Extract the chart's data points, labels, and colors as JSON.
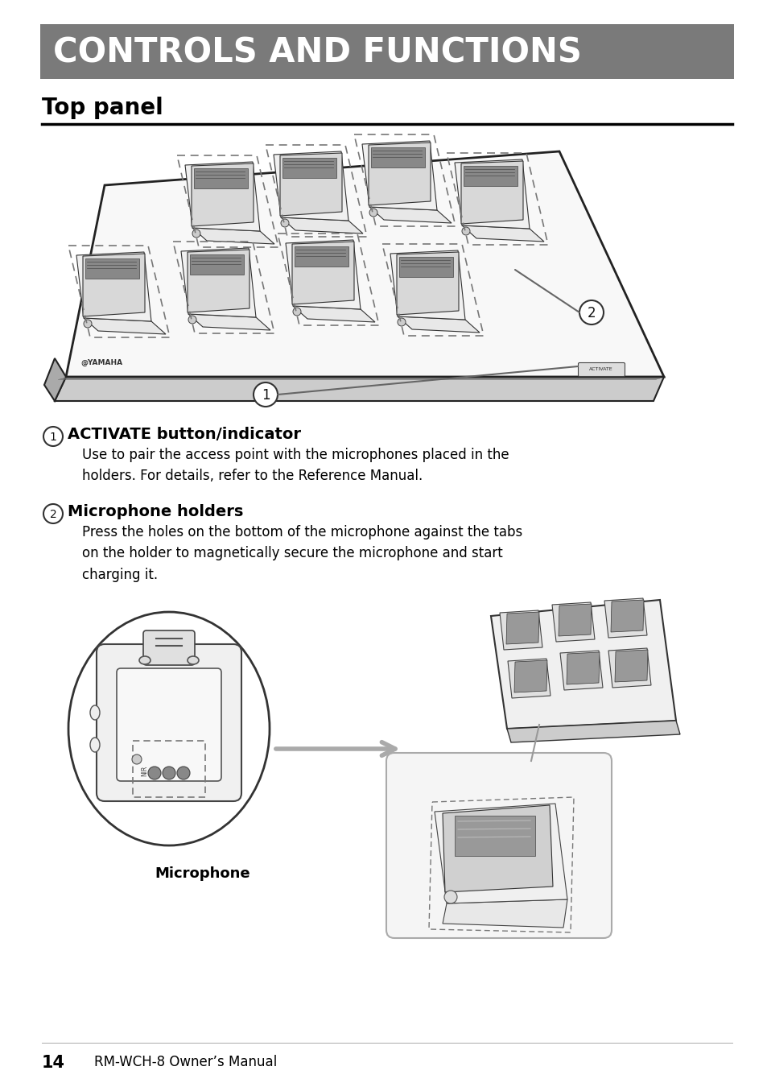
{
  "page_bg": "#ffffff",
  "header_bg": "#7a7a7a",
  "header_text": "CONTROLS AND FUNCTIONS",
  "header_text_color": "#ffffff",
  "header_fontsize": 30,
  "header_font_weight": "bold",
  "section_title": "Top panel",
  "section_title_fontsize": 20,
  "section_title_font_weight": "bold",
  "item1_title": "ACTIVATE button/indicator",
  "item1_title_fontsize": 14,
  "item1_body": "Use to pair the access point with the microphones placed in the\nholders. For details, refer to the Reference Manual.",
  "item1_body_fontsize": 12,
  "item2_title": "Microphone holders",
  "item2_title_fontsize": 14,
  "item2_body": "Press the holes on the bottom of the microphone against the tabs\non the holder to magnetically secure the microphone and start\ncharging it.",
  "item2_body_fontsize": 12,
  "microphone_label": "Microphone",
  "footer_page": "14",
  "footer_manual": "RM-WCH-8 Owner’s Manual",
  "footer_fontsize": 12,
  "ml": 52,
  "mr": 910
}
